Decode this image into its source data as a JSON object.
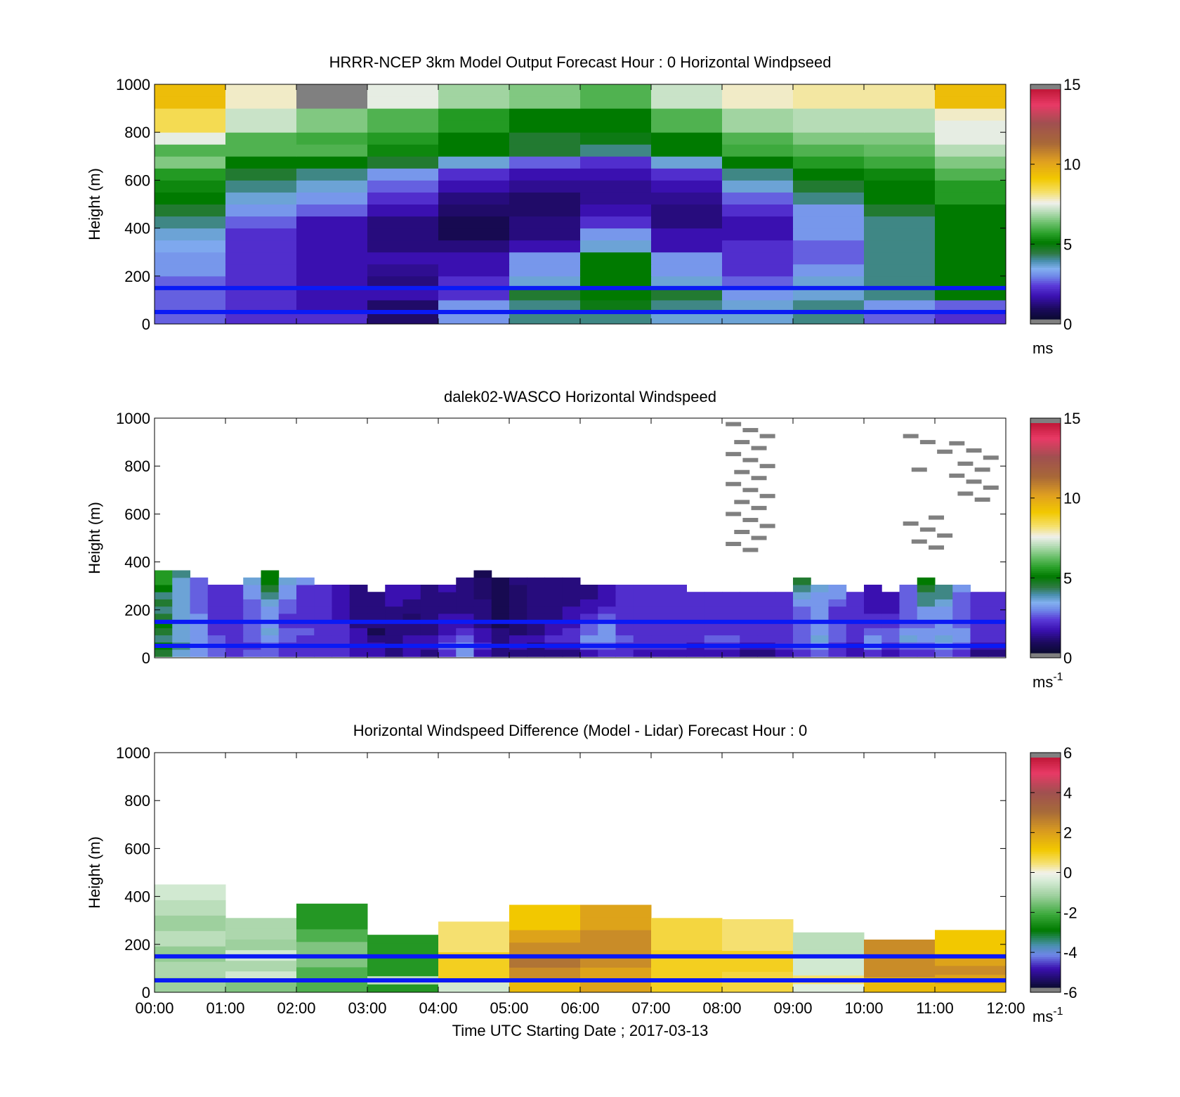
{
  "figure": {
    "xlabel": "Time UTC  Starting Date ; 2017-03-13",
    "time_ticks": [
      "00:00",
      "01:00",
      "02:00",
      "03:00",
      "04:00",
      "05:00",
      "06:00",
      "07:00",
      "08:00",
      "09:00",
      "10:00",
      "11:00",
      "12:00"
    ]
  },
  "chart_data": [
    {
      "type": "heatmap",
      "title": "HRRR-NCEP 3km Model Output   Forecast Hour : 0 Horizontal Windpseed",
      "ylabel": "Height (m)",
      "xlim": [
        0,
        12
      ],
      "ylim": [
        0,
        1000
      ],
      "yticks": [
        "0",
        "200",
        "400",
        "600",
        "800",
        "1000"
      ],
      "colorbar": {
        "ticks": [
          "0",
          "5",
          "10",
          "15"
        ],
        "range": [
          0,
          15
        ],
        "unit_main": "ms",
        "unit_sup": ""
      },
      "reference_lines_m": [
        50,
        150
      ],
      "time_hours": [
        0,
        1,
        2,
        3,
        4,
        5,
        6,
        7,
        8,
        9,
        10,
        11
      ],
      "height_levels_m": [
        25,
        75,
        125,
        175,
        225,
        275,
        325,
        375,
        425,
        475,
        525,
        575,
        625,
        675,
        725,
        775,
        825,
        875,
        925,
        975
      ],
      "values_ms": [
        [
          2.5,
          2.0,
          2.0,
          0.8,
          3.0,
          4.0,
          4.0,
          3.5,
          3.5,
          4.0,
          2.5,
          2.0
        ],
        [
          2.5,
          2.0,
          1.5,
          0.8,
          3.0,
          4.0,
          4.8,
          4.0,
          3.5,
          4.0,
          3.0,
          2.5
        ],
        [
          2.5,
          2.0,
          1.5,
          1.5,
          2.0,
          4.5,
          5.0,
          4.5,
          3.0,
          3.5,
          4.0,
          5.0
        ],
        [
          2.5,
          2.0,
          1.5,
          1.0,
          2.0,
          3.5,
          5.0,
          3.5,
          2.5,
          3.5,
          4.0,
          5.0
        ],
        [
          3.0,
          2.0,
          1.5,
          1.2,
          1.5,
          3.0,
          5.0,
          3.0,
          2.0,
          3.0,
          4.0,
          5.0
        ],
        [
          3.0,
          2.0,
          1.5,
          1.5,
          1.5,
          3.0,
          5.0,
          3.0,
          2.0,
          2.5,
          4.0,
          5.0
        ],
        [
          3.2,
          2.0,
          1.5,
          1.0,
          1.0,
          1.5,
          3.5,
          1.5,
          2.0,
          2.5,
          4.0,
          5.0
        ],
        [
          3.5,
          2.0,
          1.5,
          1.0,
          0.5,
          1.0,
          3.0,
          1.5,
          1.5,
          3.0,
          4.0,
          5.0
        ],
        [
          4.0,
          2.5,
          1.5,
          1.0,
          0.5,
          1.0,
          2.0,
          1.0,
          1.5,
          3.0,
          4.0,
          5.0
        ],
        [
          4.5,
          3.0,
          2.5,
          1.5,
          0.8,
          0.8,
          1.5,
          1.0,
          2.0,
          3.0,
          4.5,
          5.0
        ],
        [
          5.0,
          3.5,
          3.0,
          2.0,
          1.0,
          0.8,
          1.2,
          1.2,
          2.5,
          4.0,
          5.0,
          5.5
        ],
        [
          5.2,
          4.0,
          3.5,
          2.5,
          1.5,
          1.2,
          1.2,
          1.5,
          3.5,
          4.5,
          5.0,
          5.5
        ],
        [
          5.5,
          4.5,
          4.0,
          3.0,
          2.0,
          1.5,
          1.5,
          2.0,
          4.0,
          5.0,
          5.2,
          6.0
        ],
        [
          6.5,
          5.0,
          5.0,
          4.5,
          3.5,
          2.5,
          2.0,
          3.5,
          5.0,
          5.5,
          5.8,
          6.5
        ],
        [
          6.0,
          6.0,
          6.0,
          5.2,
          5.0,
          4.5,
          4.0,
          5.0,
          5.8,
          6.0,
          6.2,
          7.0
        ],
        [
          7.5,
          6.0,
          5.8,
          5.5,
          5.0,
          4.5,
          4.8,
          5.0,
          6.0,
          6.5,
          6.5,
          7.5
        ],
        [
          8.5,
          7.2,
          6.5,
          6.0,
          5.5,
          5.0,
          5.0,
          6.0,
          6.8,
          7.0,
          7.0,
          7.5
        ],
        [
          8.5,
          7.2,
          6.5,
          6.0,
          5.5,
          5.0,
          5.0,
          6.0,
          6.8,
          7.0,
          7.0,
          7.8
        ],
        [
          9.5,
          7.8,
          15.0,
          7.5,
          6.8,
          6.5,
          6.0,
          7.2,
          7.8,
          8.0,
          8.0,
          9.5
        ],
        [
          9.5,
          7.8,
          15.0,
          7.5,
          6.8,
          6.5,
          6.0,
          7.2,
          7.8,
          8.0,
          8.0,
          9.5
        ]
      ]
    },
    {
      "type": "heatmap",
      "title": "dalek02-WASCO  Horizontal Windspeed",
      "ylabel": "Height (m)",
      "xlim": [
        0,
        12
      ],
      "ylim": [
        0,
        1000
      ],
      "yticks": [
        "0",
        "200",
        "400",
        "600",
        "800",
        "1000"
      ],
      "colorbar": {
        "ticks": [
          "0",
          "5",
          "10",
          "15"
        ],
        "range": [
          0,
          15
        ],
        "unit_main": "ms",
        "unit_sup": "-1"
      },
      "reference_lines_m": [
        50,
        150
      ],
      "time_hours": [
        0.125,
        0.375,
        0.625,
        0.875,
        1.125,
        1.375,
        1.625,
        1.875,
        2.125,
        2.375,
        2.625,
        2.875,
        3.125,
        3.375,
        3.625,
        3.875,
        4.125,
        4.375,
        4.625,
        4.875,
        5.125,
        5.375,
        5.625,
        5.875,
        6.125,
        6.375,
        6.625,
        6.875,
        7.125,
        7.375,
        7.625,
        7.875,
        8.125,
        8.375,
        8.625,
        8.875,
        9.125,
        9.375,
        9.625,
        9.875,
        10.125,
        10.375,
        10.625,
        10.875,
        11.125,
        11.375,
        11.625,
        11.875
      ],
      "height_levels_m": [
        20,
        50,
        80,
        110,
        140,
        170,
        200,
        230,
        260,
        290,
        320,
        350
      ],
      "values_ms": [
        [
          4.5,
          3.5,
          3.0,
          2.5,
          2.0,
          2.5,
          2.5,
          2.0,
          2.0,
          2.0,
          2.0,
          1.5,
          1.5,
          1.0,
          1.5,
          1.0,
          2.0,
          3.0,
          1.5,
          1.0,
          1.0,
          1.0,
          1.0,
          1.0,
          1.5,
          2.0,
          2.0,
          1.5,
          1.5,
          1.5,
          1.5,
          1.5,
          1.5,
          1.0,
          1.0,
          1.5,
          2.0,
          2.5,
          2.0,
          1.5,
          2.0,
          1.5,
          2.0,
          2.0,
          2.5,
          2.0,
          1.0,
          1.0
        ],
        [
          5.0,
          4.0,
          3.0,
          2.5,
          2.0,
          2.0,
          2.5,
          2.0,
          2.0,
          2.0,
          2.0,
          1.5,
          1.5,
          1.0,
          1.5,
          1.5,
          2.5,
          3.0,
          2.0,
          1.0,
          1.5,
          1.0,
          1.5,
          1.5,
          2.5,
          2.5,
          2.0,
          2.0,
          2.0,
          2.0,
          1.5,
          2.0,
          2.0,
          1.5,
          1.5,
          2.0,
          2.5,
          3.0,
          2.0,
          1.5,
          3.0,
          2.0,
          2.5,
          2.5,
          3.0,
          2.5,
          1.5,
          1.5
        ],
        [
          4.0,
          3.5,
          3.0,
          2.5,
          2.0,
          2.5,
          3.0,
          2.5,
          2.0,
          2.0,
          2.0,
          1.5,
          1.0,
          1.0,
          1.5,
          1.5,
          2.0,
          2.5,
          1.5,
          1.0,
          1.5,
          1.5,
          2.0,
          2.0,
          3.0,
          3.0,
          2.5,
          2.0,
          2.0,
          2.0,
          2.0,
          2.5,
          2.5,
          2.0,
          2.0,
          2.0,
          2.5,
          3.5,
          2.5,
          2.0,
          3.0,
          2.5,
          3.5,
          3.0,
          3.5,
          3.0,
          2.0,
          2.0
        ],
        [
          4.5,
          3.5,
          3.0,
          2.0,
          2.0,
          2.5,
          3.5,
          2.5,
          2.5,
          2.0,
          2.0,
          1.5,
          0.5,
          1.0,
          1.0,
          1.0,
          1.5,
          2.0,
          1.5,
          1.0,
          0.8,
          1.0,
          1.5,
          2.0,
          2.5,
          3.0,
          2.0,
          2.0,
          2.0,
          2.0,
          2.0,
          2.0,
          2.0,
          2.0,
          2.0,
          2.0,
          2.5,
          3.0,
          2.5,
          2.0,
          2.5,
          2.5,
          3.0,
          3.0,
          3.0,
          3.0,
          2.0,
          2.0
        ],
        [
          5.0,
          3.5,
          3.0,
          2.0,
          2.0,
          2.5,
          3.0,
          2.0,
          2.0,
          2.0,
          2.0,
          1.0,
          1.0,
          1.0,
          1.0,
          1.0,
          1.5,
          1.5,
          1.0,
          0.5,
          0.8,
          1.0,
          1.5,
          1.5,
          2.5,
          3.0,
          2.0,
          2.0,
          2.0,
          2.0,
          2.0,
          2.0,
          2.0,
          2.0,
          2.0,
          2.0,
          2.5,
          3.0,
          2.5,
          2.0,
          2.0,
          2.0,
          2.5,
          2.5,
          3.0,
          2.5,
          2.0,
          2.0
        ],
        [
          4.5,
          3.5,
          3.0,
          2.0,
          2.0,
          2.5,
          3.0,
          2.0,
          2.0,
          2.0,
          1.5,
          1.0,
          1.0,
          1.0,
          0.8,
          1.0,
          1.5,
          1.5,
          1.0,
          0.5,
          0.8,
          1.0,
          1.0,
          1.5,
          2.0,
          2.5,
          2.0,
          2.0,
          2.0,
          2.0,
          2.0,
          2.0,
          2.0,
          2.0,
          2.0,
          2.0,
          2.5,
          3.0,
          2.0,
          2.0,
          2.0,
          2.0,
          2.5,
          3.0,
          3.0,
          2.5,
          2.0,
          2.0
        ],
        [
          4.0,
          3.5,
          2.5,
          2.0,
          2.0,
          2.5,
          3.0,
          2.5,
          2.0,
          2.0,
          1.5,
          1.0,
          1.0,
          1.0,
          1.0,
          1.0,
          1.0,
          1.0,
          1.0,
          0.5,
          0.8,
          1.0,
          1.0,
          1.5,
          1.5,
          2.0,
          2.0,
          2.0,
          2.0,
          2.0,
          2.0,
          2.0,
          2.0,
          2.0,
          2.0,
          2.0,
          2.5,
          3.0,
          2.0,
          2.0,
          1.5,
          1.5,
          2.5,
          3.0,
          3.0,
          2.5,
          2.0,
          2.0
        ],
        [
          4.5,
          3.5,
          2.5,
          2.0,
          2.0,
          2.5,
          3.5,
          2.5,
          2.0,
          2.0,
          1.5,
          1.0,
          1.0,
          1.5,
          1.0,
          1.0,
          1.0,
          1.0,
          1.0,
          0.5,
          0.8,
          1.0,
          1.0,
          1.0,
          1.5,
          1.5,
          2.0,
          2.0,
          2.0,
          2.0,
          2.0,
          2.0,
          2.0,
          2.0,
          2.0,
          2.0,
          3.0,
          3.0,
          2.5,
          2.0,
          1.5,
          1.5,
          2.5,
          4.0,
          3.5,
          2.5,
          2.0,
          2.0
        ],
        [
          4.0,
          3.5,
          2.5,
          2.0,
          2.0,
          3.0,
          4.0,
          3.0,
          2.0,
          2.0,
          1.5,
          1.0,
          1.0,
          1.5,
          1.5,
          1.0,
          1.0,
          1.0,
          0.8,
          0.5,
          0.8,
          1.0,
          1.0,
          1.0,
          1.0,
          1.5,
          2.0,
          2.0,
          2.0,
          2.0,
          2.0,
          2.0,
          2.0,
          2.0,
          2.0,
          2.0,
          3.5,
          3.0,
          3.0,
          2.0,
          1.5,
          1.5,
          2.5,
          4.0,
          4.0,
          2.5,
          2.0,
          2.0
        ],
        [
          5.0,
          3.5,
          2.5,
          2.0,
          2.0,
          3.0,
          4.5,
          3.0,
          2.0,
          2.0,
          1.5,
          1.0,
          null,
          1.5,
          1.5,
          1.0,
          1.5,
          1.0,
          0.8,
          0.5,
          0.8,
          1.0,
          1.0,
          1.0,
          1.0,
          1.5,
          2.0,
          2.0,
          2.0,
          2.0,
          null,
          null,
          null,
          null,
          null,
          null,
          4.0,
          3.5,
          3.0,
          null,
          1.5,
          null,
          2.5,
          4.5,
          4.0,
          3.0,
          null,
          null
        ],
        [
          5.5,
          3.5,
          2.5,
          null,
          null,
          3.5,
          5.0,
          3.5,
          3.0,
          null,
          null,
          null,
          null,
          null,
          null,
          null,
          null,
          1.0,
          0.8,
          0.5,
          1.0,
          1.0,
          1.0,
          1.0,
          null,
          null,
          null,
          null,
          null,
          null,
          null,
          null,
          null,
          null,
          null,
          null,
          4.5,
          null,
          null,
          null,
          null,
          null,
          null,
          5.0,
          null,
          null,
          null,
          null
        ],
        [
          5.5,
          4.0,
          null,
          null,
          null,
          null,
          5.0,
          null,
          null,
          null,
          null,
          null,
          null,
          null,
          null,
          null,
          null,
          null,
          0.5,
          null,
          null,
          null,
          null,
          null,
          null,
          null,
          null,
          null,
          null,
          null,
          null,
          null,
          null,
          null,
          null,
          null,
          null,
          null,
          null,
          null,
          null,
          null,
          null,
          null,
          null,
          null,
          null,
          null
        ]
      ],
      "overrange_heights_m": {
        "note": "cells beyond the colorbar range drawn in grey",
        "h8": [
          975,
          950,
          925,
          900,
          875,
          850,
          825,
          800,
          775,
          750,
          725,
          700,
          675,
          650,
          625,
          600,
          575,
          550,
          525,
          500,
          475,
          450
        ],
        "h11": [
          925,
          900,
          860,
          785,
          585,
          560,
          535,
          510,
          485,
          460
        ],
        "h115": [
          895,
          865,
          835,
          810,
          785,
          760,
          735,
          710,
          685,
          660
        ]
      }
    },
    {
      "type": "heatmap",
      "title": "Horizontal Windspeed Difference (Model - Lidar) Forecast Hour : 0",
      "ylabel": "Height (m)",
      "xlim": [
        0,
        12
      ],
      "ylim": [
        0,
        1000
      ],
      "yticks": [
        "0",
        "200",
        "400",
        "600",
        "800",
        "1000"
      ],
      "colorbar": {
        "ticks": [
          "-6",
          "-4",
          "-2",
          "0",
          "2",
          "4",
          "6"
        ],
        "range": [
          -6,
          6
        ],
        "unit_main": "ms",
        "unit_sup": "-1"
      },
      "reference_lines_m": [
        50,
        150
      ],
      "time_hours": [
        0,
        1,
        2,
        3,
        4,
        5,
        6,
        7,
        8,
        9,
        10,
        11
      ],
      "tops_m": [
        450,
        310,
        370,
        240,
        295,
        365,
        365,
        310,
        305,
        250,
        220,
        260
      ],
      "values_ms": [
        [
          -1.2,
          -1.5,
          -2.0,
          -2.5,
          -0.5,
          1.5,
          2.0,
          1.0,
          0.8,
          -0.3,
          1.5,
          1.5
        ],
        [
          -1.0,
          -0.5,
          -2.0,
          -0.8,
          1.0,
          2.5,
          2.0,
          1.0,
          0.8,
          0.5,
          1.5,
          2.0
        ],
        [
          -1.3,
          -1.0,
          -1.5,
          -2.5,
          1.0,
          3.0,
          2.5,
          1.0,
          1.0,
          -0.5,
          2.5,
          2.5
        ],
        [
          -0.8,
          -0.5,
          -1.5,
          -2.5,
          1.0,
          2.5,
          2.5,
          1.0,
          1.0,
          -0.5,
          2.5,
          2.0
        ],
        [
          -1.2,
          -1.2,
          -2.0,
          null,
          0.5,
          2.0,
          2.5,
          0.8,
          0.5,
          -0.8,
          null,
          1.2
        ],
        [
          -0.8,
          -1.0,
          -2.5,
          null,
          null,
          1.2,
          2.0,
          0.8,
          0.5,
          null,
          null,
          null
        ],
        [
          -0.5,
          null,
          -2.5,
          null,
          null,
          null,
          null,
          null,
          null,
          null,
          null,
          null
        ]
      ]
    }
  ]
}
